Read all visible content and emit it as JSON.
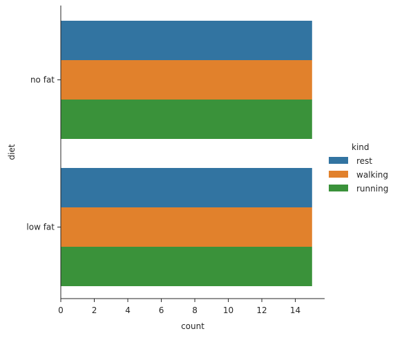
{
  "chart_data": {
    "type": "bar",
    "orientation": "horizontal",
    "categories": [
      "no fat",
      "low fat"
    ],
    "series": [
      {
        "name": "rest",
        "values": [
          15,
          15
        ],
        "color": "#3274a1"
      },
      {
        "name": "walking",
        "values": [
          15,
          15
        ],
        "color": "#e1812c"
      },
      {
        "name": "running",
        "values": [
          15,
          15
        ],
        "color": "#3a923a"
      }
    ],
    "xlabel": "count",
    "ylabel": "diet",
    "xlim": [
      0,
      15.75
    ],
    "xticks": [
      0,
      2,
      4,
      6,
      8,
      10,
      12,
      14
    ],
    "grid": false,
    "legend": {
      "title": "kind",
      "placement": "right"
    }
  }
}
